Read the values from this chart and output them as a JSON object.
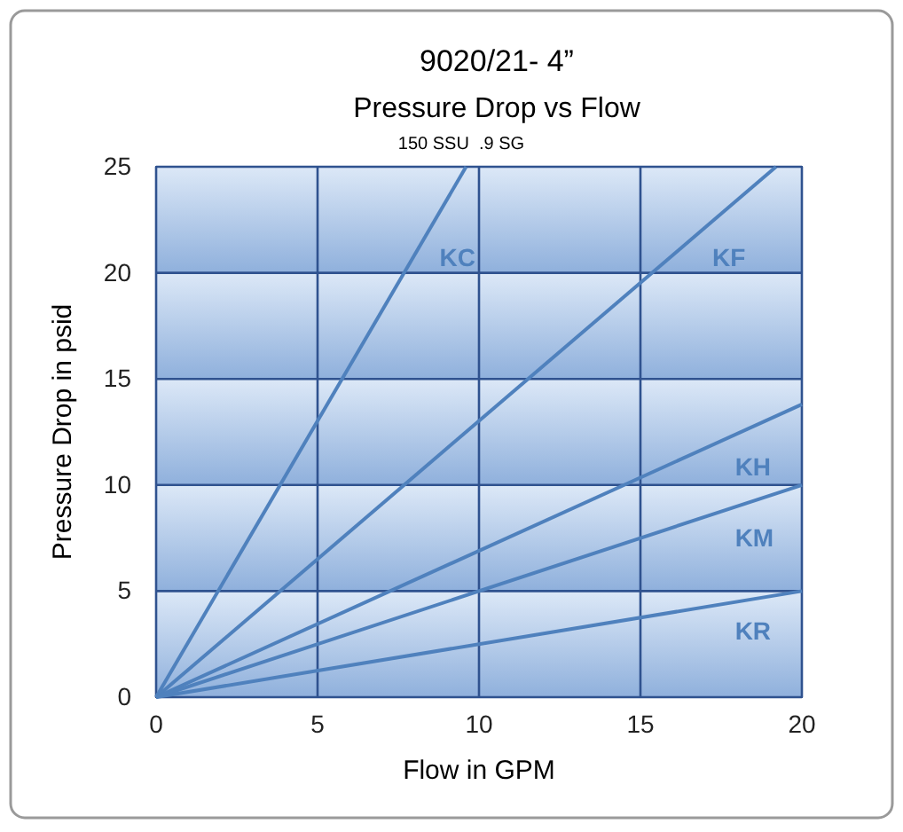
{
  "chart_data": {
    "type": "line",
    "title": "9020/21- 4”",
    "subtitle": "Pressure Drop vs Flow",
    "annotations": [
      "150 SSU  .9 SG"
    ],
    "xlabel": "Flow in GPM",
    "ylabel": "Pressure Drop in psid",
    "series": [
      {
        "name": "KC",
        "color": "#4f81bd",
        "x": [
          0,
          9.6
        ],
        "values": [
          0,
          25
        ]
      },
      {
        "name": "KF",
        "color": "#4f81bd",
        "x": [
          0,
          19.2
        ],
        "values": [
          0,
          25
        ]
      },
      {
        "name": "KH",
        "color": "#4f81bd",
        "x": [
          0,
          20
        ],
        "values": [
          0,
          13.8
        ]
      },
      {
        "name": "KM",
        "color": "#4f81bd",
        "x": [
          0,
          20
        ],
        "values": [
          0,
          10
        ]
      },
      {
        "name": "KR",
        "color": "#4f81bd",
        "x": [
          0,
          20
        ],
        "values": [
          0,
          5
        ]
      }
    ],
    "xlim": [
      0,
      20
    ],
    "xticks": [
      0,
      5,
      10,
      15,
      20
    ],
    "ylim": [
      0,
      25
    ],
    "yticks": [
      0,
      5,
      10,
      15,
      20,
      25
    ],
    "grid": true,
    "marker": "none",
    "line_style": "solid"
  }
}
